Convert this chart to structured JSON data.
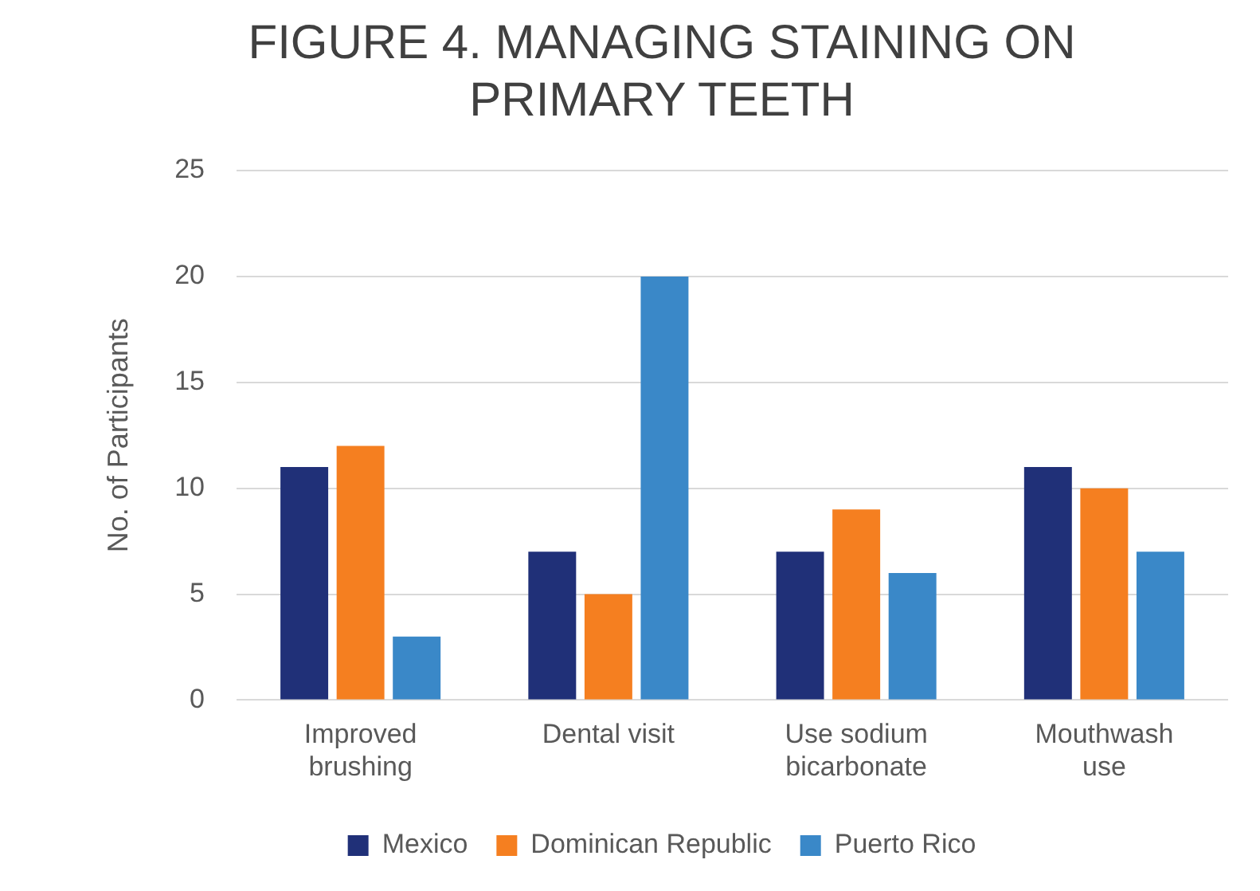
{
  "chart_data": {
    "type": "bar",
    "title": "FIGURE 4. MANAGING STAINING ON PRIMARY TEETH",
    "ylabel": "No. of Participants",
    "categories": [
      "Improved brushing",
      "Dental visit",
      "Use sodium bicarbonate",
      "Mouthwash use"
    ],
    "series": [
      {
        "name": "Mexico",
        "color": "#203078",
        "values": [
          11,
          7,
          7,
          11
        ]
      },
      {
        "name": "Dominican Republic",
        "color": "#f57f20",
        "values": [
          12,
          5,
          9,
          10
        ]
      },
      {
        "name": "Puerto Rico",
        "color": "#3a88c8",
        "values": [
          3,
          20,
          6,
          7
        ]
      }
    ],
    "ylim": [
      0,
      25
    ],
    "yticks": [
      0,
      5,
      10,
      15,
      20,
      25
    ],
    "grid": "y",
    "legend": "bottom"
  }
}
